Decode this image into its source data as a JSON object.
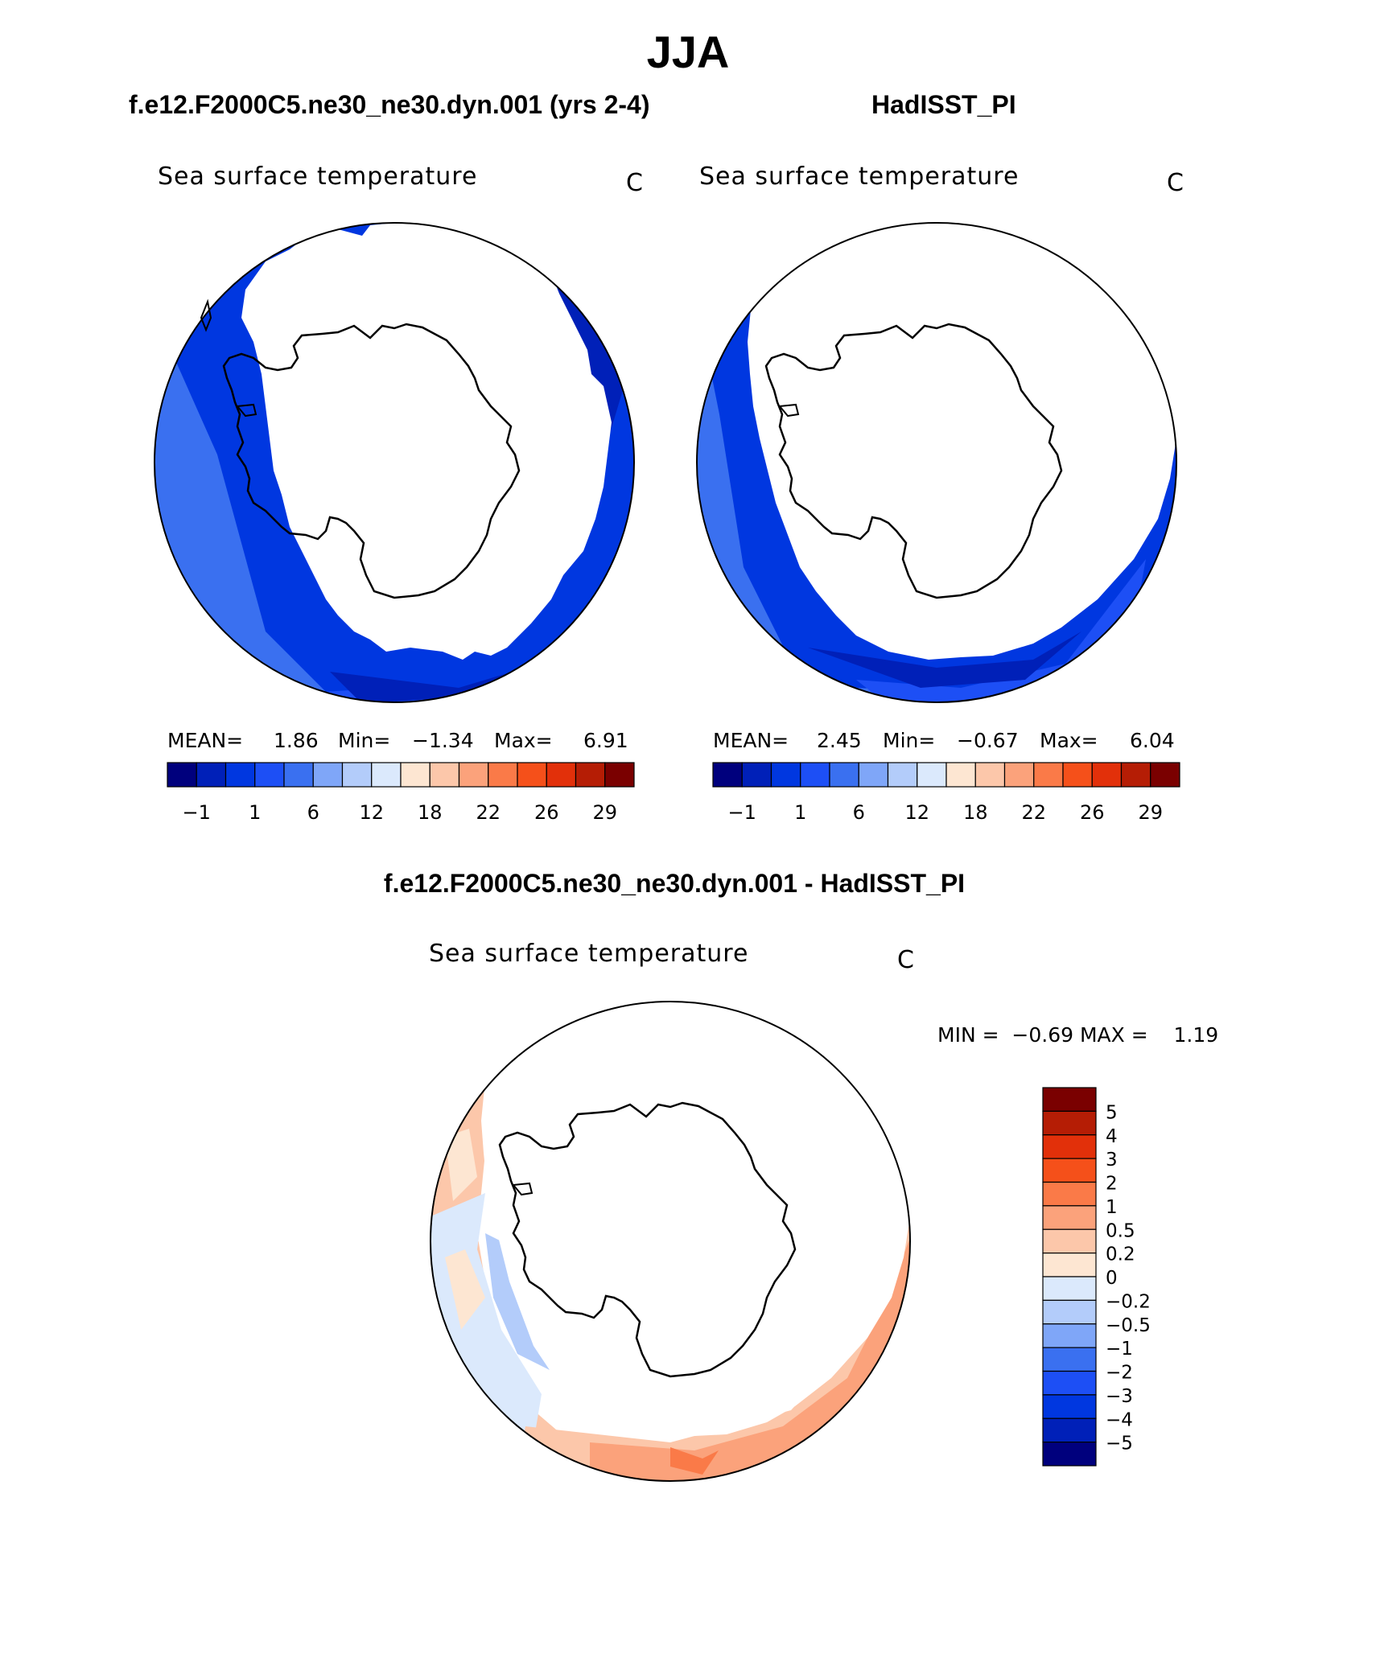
{
  "main_title": "JJA",
  "panels": {
    "model": {
      "title": "f.e12.F2000C5.ne30_ne30.dyn.001 (yrs 2-4)",
      "variable": "Sea surface temperature",
      "units": "C",
      "stats": {
        "mean_label": "MEAN=",
        "mean": "1.86",
        "min_label": "Min=",
        "min": "−1.34",
        "max_label": "Max=",
        "max": "6.91"
      }
    },
    "obs": {
      "title": "HadISST_PI",
      "variable": "Sea surface temperature",
      "units": "C",
      "stats": {
        "mean_label": "MEAN=",
        "mean": "2.45",
        "min_label": "Min=",
        "min": "−0.67",
        "max_label": "Max=",
        "max": "6.04"
      }
    },
    "diff": {
      "title": "f.e12.F2000C5.ne30_ne30.dyn.001 - HadISST_PI",
      "variable": "Sea surface temperature",
      "units": "C",
      "stats_text": "MIN =  −0.69 MAX =    1.19"
    }
  },
  "chart_data": [
    {
      "type": "heatmap",
      "projection": "south-polar-stereographic",
      "title": "f.e12.F2000C5.ne30_ne30.dyn.001 (yrs 2-4)",
      "variable": "Sea surface temperature",
      "units": "C",
      "mean": 1.86,
      "min": -1.34,
      "max": 6.91,
      "colorbar": {
        "orientation": "horizontal",
        "tick_labels": [
          "−1",
          "1",
          "6",
          "12",
          "18",
          "22",
          "26",
          "29"
        ],
        "colors": [
          "#00007d",
          "#0020b8",
          "#0037e0",
          "#1d4ff5",
          "#3a70f0",
          "#7fa6f8",
          "#b3ccfa",
          "#dbe9fc",
          "#fde6d2",
          "#fcc7aa",
          "#fba27b",
          "#fa7a48",
          "#f5501a",
          "#e2300a",
          "#b51d05",
          "#7a0000"
        ]
      },
      "field": {
        "ice_edge_warmest_region": "south-west (bottom-left)",
        "levels_shown": [
          "−1",
          "1",
          "6"
        ]
      }
    },
    {
      "type": "heatmap",
      "projection": "south-polar-stereographic",
      "title": "HadISST_PI",
      "variable": "Sea surface temperature",
      "units": "C",
      "mean": 2.45,
      "min": -0.67,
      "max": 6.04,
      "colorbar": {
        "orientation": "horizontal",
        "tick_labels": [
          "−1",
          "1",
          "6",
          "12",
          "18",
          "22",
          "26",
          "29"
        ],
        "colors": [
          "#00007d",
          "#0020b8",
          "#0037e0",
          "#1d4ff5",
          "#3a70f0",
          "#7fa6f8",
          "#b3ccfa",
          "#dbe9fc",
          "#fde6d2",
          "#fcc7aa",
          "#fba27b",
          "#fa7a48",
          "#f5501a",
          "#e2300a",
          "#b51d05",
          "#7a0000"
        ]
      }
    },
    {
      "type": "heatmap",
      "projection": "south-polar-stereographic",
      "title": "f.e12.F2000C5.ne30_ne30.dyn.001 - HadISST_PI",
      "variable": "Sea surface temperature",
      "units": "C",
      "min": -0.69,
      "max": 1.19,
      "colorbar": {
        "orientation": "vertical",
        "tick_labels": [
          "5",
          "4",
          "3",
          "2",
          "1",
          "0.5",
          "0.2",
          "0",
          "−0.2",
          "−0.5",
          "−1",
          "−2",
          "−3",
          "−4",
          "−5"
        ],
        "colors": [
          "#7a0000",
          "#b51d05",
          "#e2300a",
          "#f5501a",
          "#fa7a48",
          "#fba27b",
          "#fcc7aa",
          "#fde6d2",
          "#dbe9fc",
          "#b3ccfa",
          "#7fa6f8",
          "#3a70f0",
          "#1d4ff5",
          "#0037e0",
          "#0020b8",
          "#00007d"
        ]
      }
    }
  ]
}
